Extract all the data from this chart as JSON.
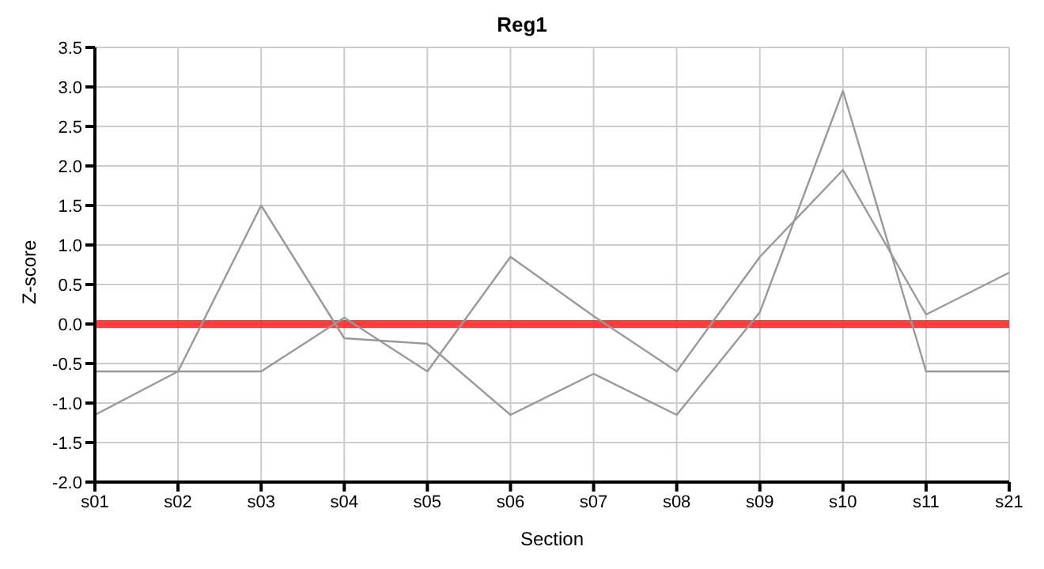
{
  "chart_data": {
    "type": "line",
    "title": "Reg1",
    "xlabel": "Section",
    "ylabel": "Z-score",
    "categories": [
      "s01",
      "s02",
      "s03",
      "s04",
      "s05",
      "s06",
      "s07",
      "s08",
      "s09",
      "s10",
      "s11",
      "s21"
    ],
    "series": [
      {
        "color": "#999999",
        "values": [
          -1.15,
          -0.6,
          1.5,
          -0.18,
          -0.25,
          -1.15,
          -0.63,
          -1.15,
          0.15,
          2.95,
          -0.6,
          -0.6
        ]
      },
      {
        "color": "#999999",
        "values": [
          -0.6,
          -0.6,
          -0.6,
          0.08,
          -0.6,
          0.85,
          0.1,
          -0.6,
          0.85,
          1.95,
          0.12,
          0.65
        ]
      }
    ],
    "ylim": [
      -2.0,
      3.5
    ],
    "yticks": [
      {
        "value": -2,
        "label": "-2.0"
      },
      {
        "value": -1.5,
        "label": "-1.5"
      },
      {
        "value": -1,
        "label": "-1.0"
      },
      {
        "value": -0.5,
        "label": "-0.5"
      },
      {
        "value": 0,
        "label": "0.0"
      },
      {
        "value": 0.5,
        "label": "0.5"
      },
      {
        "value": 1,
        "label": "1.0"
      },
      {
        "value": 1.5,
        "label": "1.5"
      },
      {
        "value": 2,
        "label": "2.0"
      },
      {
        "value": 2.5,
        "label": "2.5"
      },
      {
        "value": 3,
        "label": "3.0"
      },
      {
        "value": 3.5,
        "label": "3.5"
      }
    ],
    "ref_lines": [
      {
        "axis": "y",
        "value": 0,
        "color": "#ff2020"
      }
    ],
    "grid": true,
    "marker": "none",
    "line_style": "solid"
  }
}
